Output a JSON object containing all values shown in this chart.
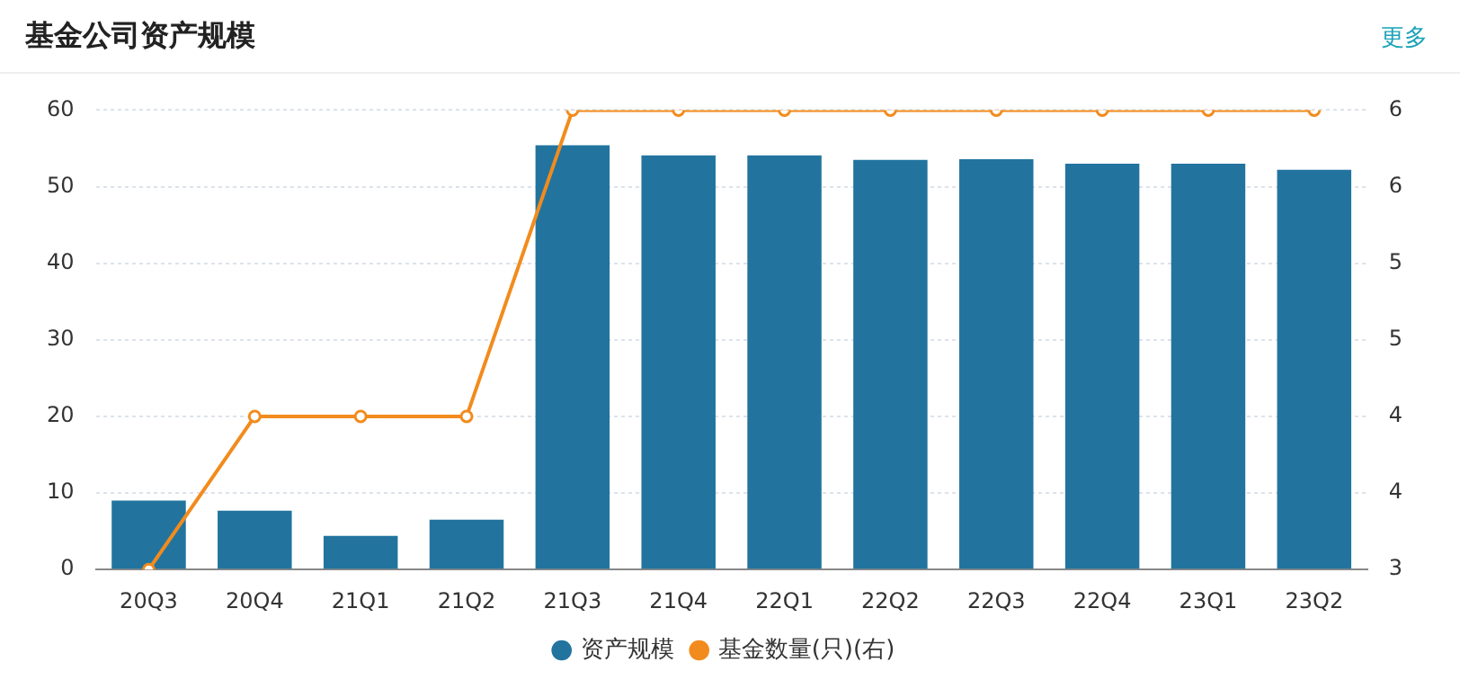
{
  "chart_data": {
    "type": "bar",
    "title": "基金公司资产规模",
    "annotations": [
      "更多"
    ],
    "categories": [
      "20Q3",
      "20Q4",
      "21Q1",
      "21Q2",
      "21Q3",
      "21Q4",
      "22Q1",
      "22Q2",
      "22Q3",
      "22Q4",
      "23Q1",
      "23Q2"
    ],
    "series": [
      {
        "name": "资产规模",
        "color": "#22749f",
        "values": [
          9.0,
          7.7,
          4.4,
          6.5,
          55.4,
          54.1,
          54.1,
          53.5,
          53.6,
          53.0,
          53.0,
          52.2
        ]
      },
      {
        "name": "基金数量(只)(右)",
        "type": "line",
        "axis": "y2",
        "color": "#f28b1d",
        "values": [
          3,
          4,
          4,
          4,
          6,
          6,
          6,
          6,
          6,
          6,
          6,
          6
        ]
      }
    ],
    "ylim": [
      0,
      60
    ],
    "yticks": [
      0,
      10,
      20,
      30,
      40,
      50,
      60
    ],
    "y2lim": [
      3,
      6
    ],
    "y2ticks": [
      3,
      {
        "value": 3.5,
        "label": "4"
      },
      4,
      {
        "value": 4.5,
        "label": "5"
      },
      5,
      {
        "value": 5.5,
        "label": "6"
      },
      6
    ],
    "grid": "y",
    "legend": "bottom",
    "marker": "circle",
    "line_style": "solid"
  }
}
